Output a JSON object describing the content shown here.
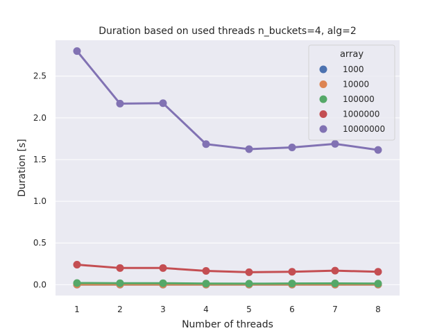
{
  "chart_data": {
    "type": "line",
    "title": "Duration based on used threads n_buckets=4, alg=2",
    "xlabel": "Number of threads",
    "ylabel": "Duration [s]",
    "x": [
      1,
      2,
      3,
      4,
      5,
      6,
      7,
      8
    ],
    "x_tick_labels": [
      "1",
      "2",
      "3",
      "4",
      "5",
      "6",
      "7",
      "8"
    ],
    "y_ticks": [
      0.0,
      0.5,
      1.0,
      1.5,
      2.0,
      2.5
    ],
    "y_tick_labels": [
      "0.0",
      "0.5",
      "1.0",
      "1.5",
      "2.0",
      "2.5"
    ],
    "ylim": [
      -0.13,
      2.93
    ],
    "grid": true,
    "legend": {
      "title": "array",
      "placement": "top-right"
    },
    "series": [
      {
        "name": "1000",
        "color": "#4c72b0",
        "values": [
          0.001,
          0.001,
          0.001,
          0.001,
          0.001,
          0.001,
          0.001,
          0.001
        ]
      },
      {
        "name": "10000",
        "color": "#dd8452",
        "values": [
          0.002,
          0.002,
          0.002,
          0.002,
          0.002,
          0.002,
          0.002,
          0.002
        ]
      },
      {
        "name": "100000",
        "color": "#55a868",
        "values": [
          0.02,
          0.018,
          0.018,
          0.013,
          0.012,
          0.014,
          0.015,
          0.013
        ]
      },
      {
        "name": "1000000",
        "color": "#c44e52",
        "values": [
          0.24,
          0.2,
          0.2,
          0.165,
          0.15,
          0.155,
          0.168,
          0.155
        ]
      },
      {
        "name": "10000000",
        "color": "#8172b3",
        "values": [
          2.8,
          2.17,
          2.175,
          1.685,
          1.625,
          1.645,
          1.688,
          1.615
        ]
      }
    ]
  }
}
